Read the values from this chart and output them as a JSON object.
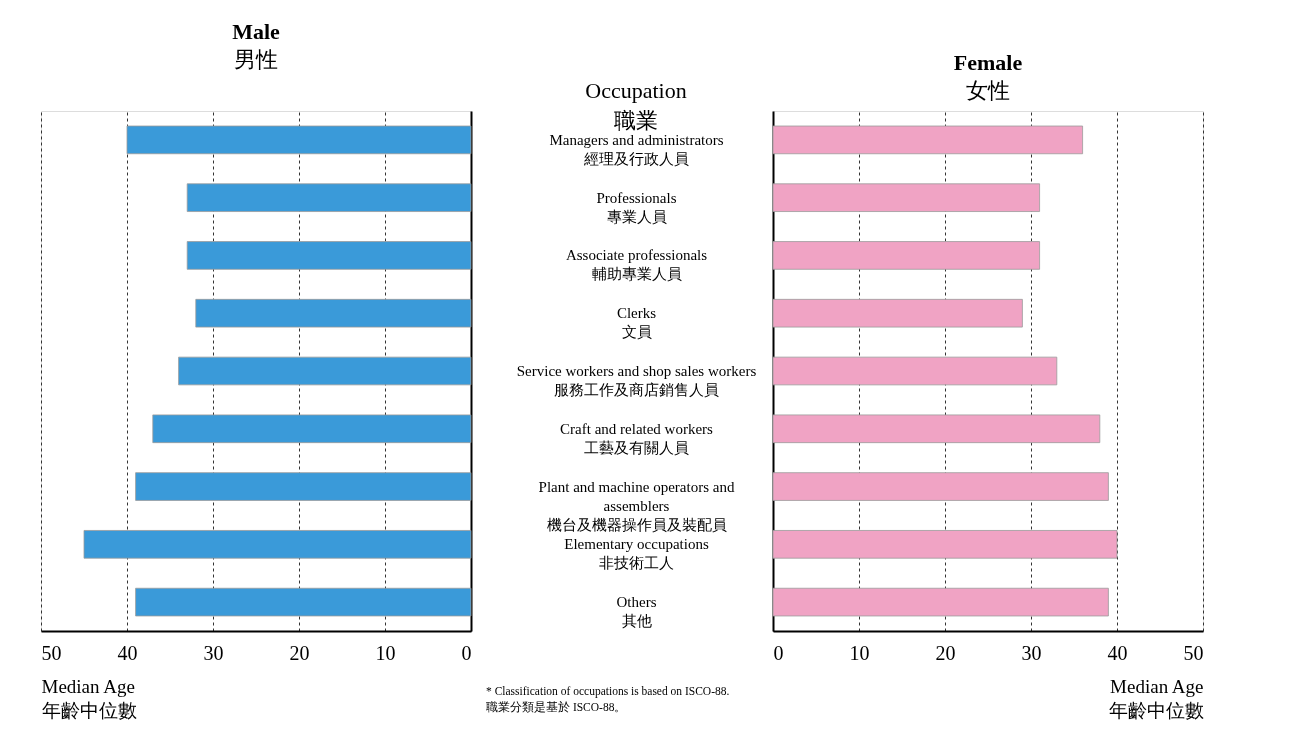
{
  "chart_data": [
    {
      "type": "bar",
      "orientation": "horizontal",
      "title": "Male",
      "subtitle": "男性",
      "ylabel": "Occupation\n職業",
      "xlabel": "Median Age\n年齡中位數",
      "categories": [
        "Managers and administrators\n經理及行政人員",
        "Professionals\n專業人員",
        "Associate professionals\n輔助專業人員",
        "Clerks\n文員",
        "Service workers and shop sales workers\n服務工作及商店銷售人員",
        "Craft and related workers\n工藝及有關人員",
        "Plant and machine operators and\nassemblers\n機台及機器操作員及裝配員",
        "Elementary occupations\n非技術工人",
        "Others\n其他"
      ],
      "values": [
        40,
        33,
        33,
        32,
        34,
        37,
        39,
        45,
        39
      ],
      "color": "#3a9ad9",
      "xlim": [
        50,
        0
      ],
      "xticks": [
        50,
        40,
        30,
        20,
        10,
        0
      ],
      "grid": "x",
      "annotations": [
        "* Classification of occupations is based on ISCO-88.\n職業分類是基於  ISCO-88。"
      ]
    },
    {
      "type": "bar",
      "orientation": "horizontal",
      "title": "Female",
      "subtitle": "女性",
      "xlabel": "Median Age\n年齡中位數",
      "values": [
        36,
        31,
        31,
        29,
        33,
        38,
        39,
        40,
        39
      ],
      "color": "#f0a3c4",
      "xlim": [
        0,
        50
      ],
      "xticks": [
        0,
        10,
        20,
        30,
        40,
        50
      ],
      "grid": "x"
    }
  ]
}
